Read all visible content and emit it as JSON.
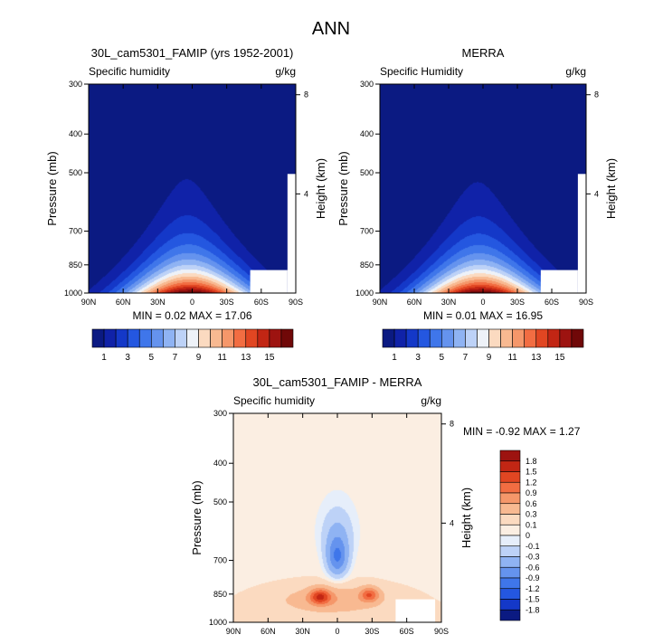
{
  "figure_title": "ANN",
  "chart_data": [
    {
      "type": "heatmap",
      "title": "30L_cam5301_FAMIP (yrs 1952-2001)",
      "left_label": "Specific humidity",
      "units": "g/kg",
      "ylabel": "Pressure (mb)",
      "ylabel_right": "Height (km)",
      "x_ticks": [
        "90N",
        "60N",
        "30N",
        "0",
        "30S",
        "60S",
        "90S"
      ],
      "x_values": [
        90,
        60,
        30,
        0,
        -30,
        -60,
        -90
      ],
      "y_ticks": [
        "300",
        "400",
        "500",
        "700",
        "850",
        "1000"
      ],
      "y_values": [
        300,
        400,
        500,
        700,
        850,
        1000
      ],
      "ylim": [
        1000,
        300
      ],
      "log_pressure_axis": true,
      "height_ticks": [
        "8",
        "4"
      ],
      "height_values": [
        8,
        4
      ],
      "stats": {
        "min_label": "MIN =",
        "min": "0.02",
        "max_label": "MAX =",
        "max": "17.06"
      },
      "peak": {
        "lat": 3,
        "p": 1000,
        "value": 17.06
      },
      "colormap": "BlueWhiteOrangeRed"
    },
    {
      "type": "heatmap",
      "title": "MERRA",
      "left_label": "Specific Humidity",
      "units": "g/kg",
      "ylabel": "Pressure (mb)",
      "ylabel_right": "Height (km)",
      "x_ticks": [
        "90N",
        "60N",
        "30N",
        "0",
        "30S",
        "60S",
        "90S"
      ],
      "x_values": [
        90,
        60,
        30,
        0,
        -30,
        -60,
        -90
      ],
      "y_ticks": [
        "300",
        "400",
        "500",
        "700",
        "850",
        "1000"
      ],
      "y_values": [
        300,
        400,
        500,
        700,
        850,
        1000
      ],
      "ylim": [
        1000,
        300
      ],
      "log_pressure_axis": true,
      "height_ticks": [
        "8",
        "4"
      ],
      "height_values": [
        8,
        4
      ],
      "stats": {
        "min_label": "MIN =",
        "min": "0.01",
        "max_label": "MAX =",
        "max": "16.95"
      },
      "peak": {
        "lat": 3,
        "p": 1000,
        "value": 16.95
      },
      "colormap": "BlueWhiteOrangeRed"
    },
    {
      "type": "heatmap",
      "title": "30L_cam5301_FAMIP - MERRA",
      "left_label": "Specific humidity",
      "units": "g/kg",
      "ylabel": "Pressure (mb)",
      "ylabel_right": "Height (km)",
      "x_ticks": [
        "90N",
        "60N",
        "30N",
        "0",
        "30S",
        "60S",
        "90S"
      ],
      "x_values": [
        90,
        60,
        30,
        0,
        -30,
        -60,
        -90
      ],
      "y_ticks": [
        "300",
        "400",
        "500",
        "700",
        "850",
        "1000"
      ],
      "y_values": [
        300,
        400,
        500,
        700,
        850,
        1000
      ],
      "ylim": [
        1000,
        300
      ],
      "log_pressure_axis": true,
      "height_ticks": [
        "8",
        "4"
      ],
      "height_values": [
        8,
        4
      ],
      "stats": {
        "min_label": "MIN =",
        "min": "-0.92",
        "max_label": "MAX =",
        "max": "1.27"
      },
      "features": [
        {
          "name": "negative-core",
          "lat": 0,
          "p": 690,
          "value": -0.92
        },
        {
          "name": "positive-max",
          "lat": 15,
          "p": 860,
          "value": 1.27
        },
        {
          "name": "positive-secondary",
          "lat": -28,
          "p": 855,
          "value": 1.0
        }
      ],
      "colormap": "BlueWhiteOrangeRed"
    }
  ],
  "colorbars": [
    {
      "orientation": "horizontal",
      "labels": [
        "1",
        "3",
        "5",
        "7",
        "9",
        "11",
        "13",
        "15"
      ],
      "levels": [
        1,
        2,
        3,
        4,
        5,
        6,
        7,
        8,
        9,
        10,
        11,
        12,
        13,
        14,
        15,
        16
      ],
      "colors": [
        "#0b1a82",
        "#1022a8",
        "#1438c8",
        "#2457e0",
        "#3f76ea",
        "#6593ee",
        "#8fb3f3",
        "#bdd2f7",
        "#eef2f8",
        "#fbdac0",
        "#f8b991",
        "#f5976a",
        "#f26d42",
        "#e14622",
        "#c22614",
        "#9d1310",
        "#700808"
      ]
    },
    {
      "orientation": "horizontal",
      "labels": [
        "1",
        "3",
        "5",
        "7",
        "9",
        "11",
        "13",
        "15"
      ],
      "levels": [
        1,
        2,
        3,
        4,
        5,
        6,
        7,
        8,
        9,
        10,
        11,
        12,
        13,
        14,
        15,
        16
      ],
      "colors": [
        "#0b1a82",
        "#1022a8",
        "#1438c8",
        "#2457e0",
        "#3f76ea",
        "#6593ee",
        "#8fb3f3",
        "#bdd2f7",
        "#eef2f8",
        "#fbdac0",
        "#f8b991",
        "#f5976a",
        "#f26d42",
        "#e14622",
        "#c22614",
        "#9d1310",
        "#700808"
      ]
    },
    {
      "orientation": "vertical",
      "labels": [
        "1.8",
        "1.5",
        "1.2",
        "0.9",
        "0.6",
        "0.3",
        "0.1",
        "0",
        "-0.1",
        "-0.3",
        "-0.6",
        "-0.9",
        "-1.2",
        "-1.5",
        "-1.8"
      ],
      "levels": [
        1.8,
        1.5,
        1.2,
        0.9,
        0.6,
        0.3,
        0.1,
        0,
        -0.1,
        -0.3,
        -0.6,
        -0.9,
        -1.2,
        -1.5,
        -1.8
      ],
      "colors": [
        "#9d1310",
        "#c22614",
        "#e14622",
        "#f26d42",
        "#f5976a",
        "#f8b991",
        "#fbdac0",
        "#fbeee2",
        "#e6eefa",
        "#bdd2f7",
        "#8fb3f3",
        "#6593ee",
        "#3f76ea",
        "#2457e0",
        "#1438c8",
        "#0b1a82"
      ]
    }
  ]
}
